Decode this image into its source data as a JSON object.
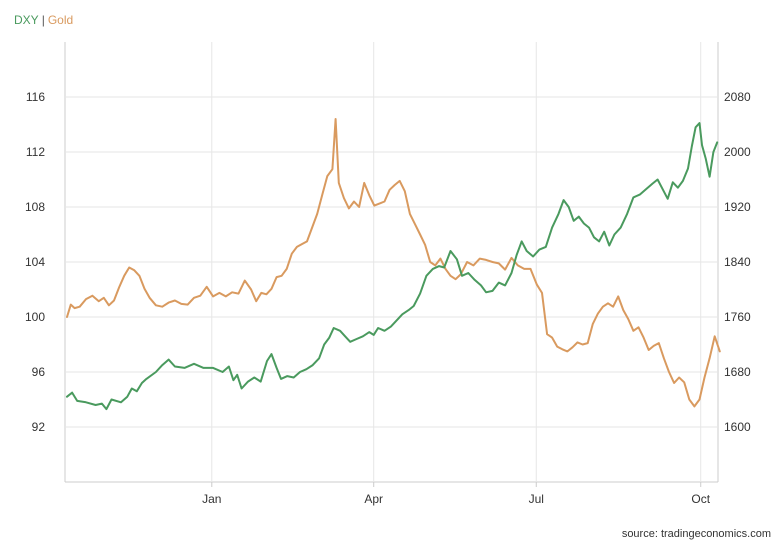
{
  "legend": {
    "dxy_label": "DXY",
    "separator": "|",
    "gold_label": "Gold"
  },
  "source": "source: tradingeconomics.com",
  "colors": {
    "dxy": "#4a9a5e",
    "gold": "#d99a5f",
    "grid": "#e6e6e6",
    "axis": "#cccccc"
  },
  "chart_data": {
    "type": "line",
    "x_ticks": [
      {
        "label": "Jan",
        "t": 0.228
      },
      {
        "label": "Apr",
        "t": 0.483
      },
      {
        "label": "Jul",
        "t": 0.739
      },
      {
        "label": "Oct",
        "t": 0.998
      }
    ],
    "y_left": {
      "ticks": [
        92,
        96,
        100,
        104,
        108,
        112,
        116
      ],
      "range": [
        88,
        120
      ]
    },
    "y_right": {
      "ticks": [
        1600,
        1680,
        1760,
        1840,
        1920,
        2000,
        2080
      ],
      "range": [
        1520,
        2160
      ]
    },
    "grid": true,
    "series": [
      {
        "name": "DXY",
        "axis": "left",
        "points": [
          [
            0.0,
            94.2
          ],
          [
            0.008,
            94.5
          ],
          [
            0.016,
            93.9
          ],
          [
            0.03,
            93.8
          ],
          [
            0.045,
            93.6
          ],
          [
            0.055,
            93.7
          ],
          [
            0.062,
            93.3
          ],
          [
            0.07,
            94.0
          ],
          [
            0.085,
            93.8
          ],
          [
            0.095,
            94.2
          ],
          [
            0.102,
            94.8
          ],
          [
            0.11,
            94.6
          ],
          [
            0.118,
            95.2
          ],
          [
            0.125,
            95.5
          ],
          [
            0.14,
            96.0
          ],
          [
            0.15,
            96.5
          ],
          [
            0.16,
            96.9
          ],
          [
            0.17,
            96.4
          ],
          [
            0.185,
            96.3
          ],
          [
            0.2,
            96.6
          ],
          [
            0.215,
            96.3
          ],
          [
            0.23,
            96.3
          ],
          [
            0.245,
            96.0
          ],
          [
            0.255,
            96.4
          ],
          [
            0.262,
            95.4
          ],
          [
            0.268,
            95.8
          ],
          [
            0.275,
            94.8
          ],
          [
            0.285,
            95.3
          ],
          [
            0.295,
            95.6
          ],
          [
            0.305,
            95.3
          ],
          [
            0.315,
            96.8
          ],
          [
            0.322,
            97.3
          ],
          [
            0.33,
            96.3
          ],
          [
            0.337,
            95.5
          ],
          [
            0.347,
            95.7
          ],
          [
            0.357,
            95.6
          ],
          [
            0.367,
            96.0
          ],
          [
            0.377,
            96.2
          ],
          [
            0.387,
            96.5
          ],
          [
            0.397,
            97.0
          ],
          [
            0.405,
            98.0
          ],
          [
            0.413,
            98.5
          ],
          [
            0.42,
            99.2
          ],
          [
            0.43,
            99.0
          ],
          [
            0.438,
            98.6
          ],
          [
            0.446,
            98.2
          ],
          [
            0.456,
            98.4
          ],
          [
            0.466,
            98.6
          ],
          [
            0.476,
            98.9
          ],
          [
            0.483,
            98.7
          ],
          [
            0.49,
            99.2
          ],
          [
            0.5,
            99.0
          ],
          [
            0.51,
            99.3
          ],
          [
            0.52,
            99.8
          ],
          [
            0.528,
            100.2
          ],
          [
            0.538,
            100.5
          ],
          [
            0.546,
            100.8
          ],
          [
            0.556,
            101.7
          ],
          [
            0.566,
            103.0
          ],
          [
            0.576,
            103.5
          ],
          [
            0.586,
            103.7
          ],
          [
            0.594,
            103.6
          ],
          [
            0.604,
            104.8
          ],
          [
            0.614,
            104.2
          ],
          [
            0.622,
            103.0
          ],
          [
            0.632,
            103.2
          ],
          [
            0.642,
            102.7
          ],
          [
            0.652,
            102.3
          ],
          [
            0.66,
            101.8
          ],
          [
            0.67,
            101.9
          ],
          [
            0.68,
            102.5
          ],
          [
            0.69,
            102.3
          ],
          [
            0.7,
            103.2
          ],
          [
            0.708,
            104.5
          ],
          [
            0.716,
            105.5
          ],
          [
            0.724,
            104.8
          ],
          [
            0.734,
            104.4
          ],
          [
            0.744,
            104.9
          ],
          [
            0.754,
            105.1
          ],
          [
            0.764,
            106.5
          ],
          [
            0.774,
            107.5
          ],
          [
            0.782,
            108.5
          ],
          [
            0.79,
            108.0
          ],
          [
            0.798,
            107.0
          ],
          [
            0.806,
            107.3
          ],
          [
            0.814,
            106.8
          ],
          [
            0.822,
            106.5
          ],
          [
            0.83,
            105.8
          ],
          [
            0.838,
            105.5
          ],
          [
            0.846,
            106.2
          ],
          [
            0.854,
            105.2
          ],
          [
            0.862,
            106.0
          ],
          [
            0.872,
            106.5
          ],
          [
            0.882,
            107.5
          ],
          [
            0.892,
            108.7
          ],
          [
            0.902,
            108.9
          ],
          [
            0.912,
            109.3
          ],
          [
            0.922,
            109.7
          ],
          [
            0.93,
            110.0
          ],
          [
            0.938,
            109.3
          ],
          [
            0.946,
            108.6
          ],
          [
            0.954,
            109.8
          ],
          [
            0.962,
            109.4
          ],
          [
            0.97,
            109.9
          ],
          [
            0.978,
            110.8
          ],
          [
            0.984,
            112.4
          ],
          [
            0.99,
            113.8
          ],
          [
            0.996,
            114.1
          ],
          [
            1.0,
            112.5
          ],
          [
            1.006,
            111.5
          ],
          [
            1.012,
            110.2
          ],
          [
            1.018,
            112.0
          ],
          [
            1.024,
            112.7
          ]
        ]
      },
      {
        "name": "Gold",
        "axis": "right",
        "points": [
          [
            0.0,
            1760
          ],
          [
            0.006,
            1778
          ],
          [
            0.012,
            1773
          ],
          [
            0.02,
            1775
          ],
          [
            0.03,
            1786
          ],
          [
            0.04,
            1791
          ],
          [
            0.05,
            1783
          ],
          [
            0.058,
            1788
          ],
          [
            0.066,
            1777
          ],
          [
            0.074,
            1784
          ],
          [
            0.082,
            1803
          ],
          [
            0.09,
            1820
          ],
          [
            0.098,
            1832
          ],
          [
            0.106,
            1828
          ],
          [
            0.114,
            1820
          ],
          [
            0.122,
            1801
          ],
          [
            0.13,
            1788
          ],
          [
            0.14,
            1777
          ],
          [
            0.15,
            1775
          ],
          [
            0.16,
            1781
          ],
          [
            0.17,
            1784
          ],
          [
            0.18,
            1779
          ],
          [
            0.19,
            1778
          ],
          [
            0.2,
            1788
          ],
          [
            0.21,
            1791
          ],
          [
            0.22,
            1804
          ],
          [
            0.23,
            1790
          ],
          [
            0.24,
            1795
          ],
          [
            0.25,
            1790
          ],
          [
            0.26,
            1796
          ],
          [
            0.27,
            1794
          ],
          [
            0.28,
            1813
          ],
          [
            0.29,
            1800
          ],
          [
            0.298,
            1783
          ],
          [
            0.306,
            1795
          ],
          [
            0.314,
            1793
          ],
          [
            0.322,
            1801
          ],
          [
            0.33,
            1818
          ],
          [
            0.338,
            1820
          ],
          [
            0.346,
            1830
          ],
          [
            0.354,
            1852
          ],
          [
            0.362,
            1862
          ],
          [
            0.37,
            1866
          ],
          [
            0.378,
            1870
          ],
          [
            0.386,
            1890
          ],
          [
            0.394,
            1910
          ],
          [
            0.402,
            1938
          ],
          [
            0.41,
            1965
          ],
          [
            0.418,
            1975
          ],
          [
            0.423,
            2048
          ],
          [
            0.428,
            1955
          ],
          [
            0.436,
            1933
          ],
          [
            0.444,
            1918
          ],
          [
            0.452,
            1928
          ],
          [
            0.46,
            1920
          ],
          [
            0.468,
            1955
          ],
          [
            0.476,
            1937
          ],
          [
            0.484,
            1922
          ],
          [
            0.492,
            1925
          ],
          [
            0.5,
            1928
          ],
          [
            0.508,
            1945
          ],
          [
            0.516,
            1952
          ],
          [
            0.524,
            1958
          ],
          [
            0.532,
            1943
          ],
          [
            0.54,
            1910
          ],
          [
            0.548,
            1895
          ],
          [
            0.556,
            1880
          ],
          [
            0.564,
            1865
          ],
          [
            0.572,
            1840
          ],
          [
            0.58,
            1835
          ],
          [
            0.588,
            1845
          ],
          [
            0.596,
            1830
          ],
          [
            0.604,
            1820
          ],
          [
            0.612,
            1815
          ],
          [
            0.62,
            1822
          ],
          [
            0.63,
            1840
          ],
          [
            0.64,
            1835
          ],
          [
            0.65,
            1845
          ],
          [
            0.66,
            1843
          ],
          [
            0.67,
            1840
          ],
          [
            0.68,
            1838
          ],
          [
            0.69,
            1829
          ],
          [
            0.7,
            1846
          ],
          [
            0.71,
            1835
          ],
          [
            0.72,
            1830
          ],
          [
            0.73,
            1830
          ],
          [
            0.74,
            1807
          ],
          [
            0.748,
            1795
          ],
          [
            0.756,
            1735
          ],
          [
            0.764,
            1730
          ],
          [
            0.772,
            1717
          ],
          [
            0.78,
            1713
          ],
          [
            0.788,
            1710
          ],
          [
            0.796,
            1716
          ],
          [
            0.804,
            1723
          ],
          [
            0.812,
            1720
          ],
          [
            0.82,
            1722
          ],
          [
            0.828,
            1750
          ],
          [
            0.836,
            1765
          ],
          [
            0.844,
            1775
          ],
          [
            0.852,
            1780
          ],
          [
            0.86,
            1775
          ],
          [
            0.868,
            1790
          ],
          [
            0.876,
            1770
          ],
          [
            0.884,
            1757
          ],
          [
            0.892,
            1740
          ],
          [
            0.9,
            1745
          ],
          [
            0.908,
            1730
          ],
          [
            0.916,
            1712
          ],
          [
            0.924,
            1718
          ],
          [
            0.932,
            1722
          ],
          [
            0.94,
            1700
          ],
          [
            0.948,
            1680
          ],
          [
            0.956,
            1664
          ],
          [
            0.964,
            1672
          ],
          [
            0.972,
            1665
          ],
          [
            0.98,
            1640
          ],
          [
            0.988,
            1630
          ],
          [
            0.996,
            1640
          ],
          [
            1.004,
            1672
          ],
          [
            1.012,
            1700
          ],
          [
            1.02,
            1732
          ],
          [
            1.028,
            1710
          ]
        ]
      }
    ]
  }
}
